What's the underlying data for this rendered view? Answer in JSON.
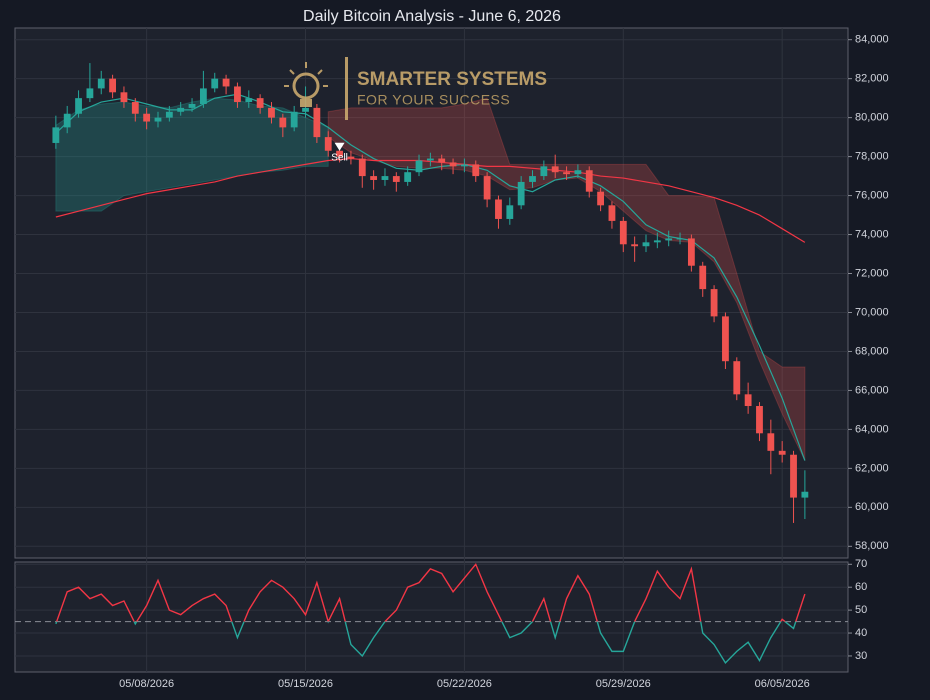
{
  "chart_data": [
    {
      "type": "candlestick",
      "title": "Daily Bitcoin Analysis - June 6, 2026",
      "watermark": [
        "SMARTER SYSTEMS",
        "FOR YOUR SUCCESS"
      ],
      "up_color": "#26a69a",
      "down_color": "#ef5350",
      "x": [
        4,
        4.5,
        5,
        5.5,
        6,
        6.5,
        7,
        7.5,
        8,
        8.5,
        9,
        9.5,
        10,
        10.5,
        11,
        11.5,
        12,
        12.5,
        13,
        13.5,
        14,
        14.5,
        15,
        15.5,
        16,
        16.5,
        17,
        17.5,
        18,
        18.5,
        19,
        19.5,
        20,
        20.5,
        21,
        21.5,
        22,
        22.5,
        23,
        23.5,
        24,
        24.5,
        25,
        25.5,
        26,
        26.5,
        27,
        27.5,
        28,
        28.5,
        29,
        29.5,
        30,
        30.5,
        31,
        31.5,
        32,
        32.5,
        33,
        33.5,
        34,
        34.5,
        35,
        35.5,
        36,
        36.5,
        37
      ],
      "open": [
        78700,
        79500,
        80200,
        81000,
        81500,
        82000,
        81300,
        80800,
        80200,
        79800,
        80000,
        80300,
        80500,
        80700,
        81500,
        82000,
        81600,
        80800,
        81000,
        80500,
        80000,
        79500,
        80300,
        80500,
        79000,
        78300,
        78000,
        77900,
        77000,
        76800,
        77000,
        76700,
        77200,
        77800,
        77900,
        77700,
        77500,
        77600,
        77000,
        75800,
        74800,
        75500,
        76700,
        77000,
        77500,
        77200,
        77100,
        77300,
        76200,
        75500,
        74700,
        73500,
        73400,
        73600,
        73700,
        73800,
        73800,
        72400,
        71200,
        69800,
        67500,
        65800,
        65200,
        63800,
        62900,
        62700,
        60500
      ],
      "high": [
        80100,
        80600,
        81400,
        82800,
        82400,
        82200,
        81600,
        81000,
        80500,
        80300,
        80600,
        80800,
        81000,
        82400,
        82300,
        82200,
        81800,
        81400,
        81200,
        80800,
        80200,
        80600,
        81600,
        80700,
        79300,
        78500,
        78300,
        78100,
        77300,
        77400,
        77200,
        77500,
        78100,
        78200,
        78100,
        77900,
        77900,
        77800,
        77200,
        76000,
        75900,
        77000,
        77300,
        77800,
        78100,
        77500,
        77600,
        77500,
        76400,
        75700,
        74900,
        73900,
        74000,
        74100,
        74200,
        74100,
        74000,
        72600,
        71400,
        70000,
        67700,
        66400,
        65400,
        64500,
        63400,
        62900,
        61900
      ],
      "low": [
        78400,
        79200,
        80000,
        80800,
        81200,
        81000,
        80500,
        79800,
        79400,
        79500,
        79800,
        80100,
        80300,
        80500,
        81300,
        81200,
        80500,
        80500,
        80200,
        79700,
        79000,
        79300,
        80000,
        78700,
        78000,
        77700,
        77600,
        76400,
        76300,
        76500,
        76200,
        76500,
        77000,
        77500,
        77300,
        77100,
        77200,
        76700,
        75400,
        74300,
        74500,
        75300,
        76400,
        76800,
        76900,
        76800,
        76900,
        75900,
        75200,
        74300,
        73100,
        72600,
        73100,
        73300,
        73400,
        73500,
        72100,
        70800,
        69500,
        67100,
        65500,
        64800,
        63400,
        61700,
        62300,
        59200,
        59400
      ],
      "close": [
        79500,
        80200,
        81000,
        81500,
        82000,
        81300,
        80800,
        80200,
        79800,
        80000,
        80300,
        80500,
        80700,
        81500,
        82000,
        81600,
        80800,
        81000,
        80500,
        80000,
        79500,
        80300,
        80500,
        79000,
        78300,
        78000,
        77900,
        77000,
        76800,
        77000,
        76700,
        77200,
        77800,
        77900,
        77700,
        77500,
        77600,
        77000,
        75800,
        74800,
        75500,
        76700,
        77000,
        77500,
        77200,
        77100,
        77300,
        76200,
        75500,
        74700,
        73500,
        73400,
        73600,
        73700,
        73800,
        73800,
        72400,
        71200,
        69800,
        67500,
        65800,
        65200,
        63800,
        62900,
        62700,
        60500,
        60800
      ],
      "cloud": [
        {
          "color": "rgba(38,166,154,0.28)",
          "x": [
            4,
            5,
            6,
            7,
            8,
            9,
            10,
            11,
            12,
            13,
            14,
            15,
            16
          ],
          "upper": [
            79600,
            80400,
            80700,
            80800,
            80600,
            80500,
            80800,
            81000,
            80900,
            80600,
            80500,
            80000,
            79500
          ],
          "lower": [
            75200,
            75200,
            75200,
            76000,
            76200,
            76400,
            76600,
            76800,
            77000,
            77200,
            77300,
            77500,
            77500
          ]
        },
        {
          "color": "rgba(239,83,80,0.25)",
          "x": [
            16,
            17,
            18,
            19,
            20,
            21,
            22,
            23,
            24,
            25,
            26,
            27,
            28,
            29,
            30,
            31,
            32,
            33,
            34,
            35,
            36,
            37
          ],
          "upper": [
            80300,
            80500,
            80500,
            80500,
            80500,
            80500,
            80700,
            81000,
            77600,
            77600,
            77600,
            77600,
            77600,
            77600,
            77600,
            76000,
            76000,
            75900,
            72000,
            68000,
            67200,
            67200
          ],
          "lower": [
            79000,
            78200,
            77800,
            77500,
            77400,
            77400,
            77300,
            77000,
            76300,
            76400,
            76800,
            76900,
            76200,
            75200,
            74200,
            73700,
            73600,
            72600,
            70500,
            67500,
            64800,
            62400
          ]
        }
      ],
      "lines": [
        {
          "color": "#26a69a",
          "x": [
            4,
            5,
            6,
            7,
            8,
            9,
            10,
            11,
            12,
            13,
            14,
            15,
            16,
            17,
            18,
            19,
            20,
            21,
            22,
            23,
            24,
            25,
            26,
            27,
            28,
            29,
            30,
            31,
            32,
            33,
            34,
            35,
            36,
            37
          ],
          "values": [
            79200,
            80300,
            80800,
            81000,
            80700,
            80400,
            80400,
            81000,
            81200,
            80800,
            80300,
            80200,
            79500,
            78600,
            77900,
            77400,
            77300,
            77500,
            77600,
            77300,
            76500,
            76200,
            76800,
            77000,
            76500,
            75700,
            74500,
            73900,
            73700,
            72800,
            70800,
            68300,
            65600,
            62400
          ]
        },
        {
          "color": "#f23645",
          "x": [
            4,
            5,
            6,
            7,
            8,
            9,
            10,
            11,
            12,
            13,
            14,
            15,
            16,
            17,
            18,
            19,
            20,
            21,
            22,
            23,
            24,
            25,
            26,
            27,
            28,
            29,
            30,
            31,
            32,
            33,
            34,
            35,
            36,
            37
          ],
          "values": [
            74900,
            75200,
            75500,
            75800,
            76100,
            76300,
            76500,
            76700,
            77000,
            77200,
            77400,
            77600,
            77800,
            77900,
            77800,
            77800,
            77800,
            77700,
            77600,
            77500,
            77500,
            77400,
            77300,
            77200,
            77000,
            76900,
            76700,
            76500,
            76200,
            75900,
            75500,
            75000,
            74300,
            73600
          ]
        }
      ],
      "marker": {
        "x": 16.5,
        "value": 78300,
        "label": "Sell",
        "color": "#ffffff"
      },
      "xlim": [
        2.2,
        38.9
      ],
      "xticks": [
        {
          "value": 8,
          "label": "05/08/2026"
        },
        {
          "value": 15,
          "label": "05/15/2026"
        },
        {
          "value": 22,
          "label": "05/22/2026"
        },
        {
          "value": 29,
          "label": "05/29/2026"
        },
        {
          "value": 36,
          "label": "06/05/2026"
        }
      ],
      "ylim": [
        57400,
        84600
      ],
      "yticks": [
        {
          "value": 58000,
          "label": "58,000"
        },
        {
          "value": 60000,
          "label": "60,000"
        },
        {
          "value": 62000,
          "label": "62,000"
        },
        {
          "value": 64000,
          "label": "64,000"
        },
        {
          "value": 66000,
          "label": "66,000"
        },
        {
          "value": 68000,
          "label": "68,000"
        },
        {
          "value": 70000,
          "label": "70,000"
        },
        {
          "value": 72000,
          "label": "72,000"
        },
        {
          "value": 74000,
          "label": "74,000"
        },
        {
          "value": 76000,
          "label": "76,000"
        },
        {
          "value": 78000,
          "label": "78,000"
        },
        {
          "value": 80000,
          "label": "80,000"
        },
        {
          "value": 82000,
          "label": "82,000"
        },
        {
          "value": 84000,
          "label": "84,000"
        }
      ],
      "grid": true
    },
    {
      "type": "line",
      "x": [
        4,
        4.5,
        5,
        5.5,
        6,
        6.5,
        7,
        7.5,
        8,
        8.5,
        9,
        9.5,
        10,
        10.5,
        11,
        11.5,
        12,
        12.5,
        13,
        13.5,
        14,
        14.5,
        15,
        15.5,
        16,
        16.5,
        17,
        17.5,
        18,
        18.5,
        19,
        19.5,
        20,
        20.5,
        21,
        21.5,
        22,
        22.5,
        23,
        23.5,
        24,
        24.5,
        25,
        25.5,
        26,
        26.5,
        27,
        27.5,
        28,
        28.5,
        29,
        29.5,
        30,
        30.5,
        31,
        31.5,
        32,
        32.5,
        33,
        33.5,
        34,
        34.5,
        35,
        35.5,
        36,
        36.5,
        37
      ],
      "values": [
        44,
        58,
        60,
        55,
        57,
        52,
        54,
        44,
        52,
        63,
        50,
        48,
        52,
        55,
        57,
        52,
        38,
        50,
        58,
        63,
        60,
        55,
        48,
        62,
        45,
        55,
        35,
        30,
        38,
        45,
        50,
        60,
        62,
        68,
        66,
        58,
        64,
        70,
        58,
        48,
        38,
        40,
        45,
        55,
        38,
        55,
        65,
        57,
        40,
        32,
        32,
        45,
        55,
        67,
        60,
        55,
        68,
        40,
        35,
        27,
        32,
        36,
        28,
        38,
        46,
        42,
        57
      ],
      "above_color": "#f23645",
      "below_color": "#26a69a",
      "reference_line": 45,
      "xlim": [
        2.2,
        38.9
      ],
      "ylim": [
        23,
        71
      ],
      "yticks": [
        30,
        40,
        50,
        60,
        70
      ],
      "grid": true
    }
  ]
}
